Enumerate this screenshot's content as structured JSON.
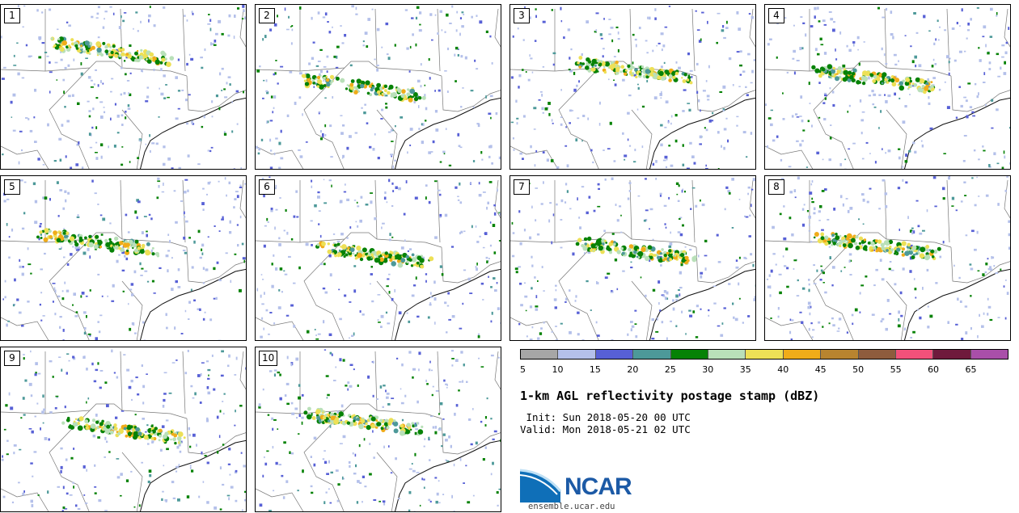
{
  "panels": [
    {
      "label": "1",
      "seed": 11,
      "band": [
        0.45,
        0.28
      ]
    },
    {
      "label": "2",
      "seed": 23,
      "band": [
        0.43,
        0.5
      ]
    },
    {
      "label": "3",
      "seed": 37,
      "band": [
        0.5,
        0.4
      ]
    },
    {
      "label": "4",
      "seed": 41,
      "band": [
        0.45,
        0.45
      ]
    },
    {
      "label": "5",
      "seed": 53,
      "band": [
        0.4,
        0.4
      ]
    },
    {
      "label": "6",
      "seed": 67,
      "band": [
        0.48,
        0.48
      ]
    },
    {
      "label": "7",
      "seed": 71,
      "band": [
        0.5,
        0.45
      ]
    },
    {
      "label": "8",
      "seed": 89,
      "band": [
        0.45,
        0.42
      ]
    },
    {
      "label": "9",
      "seed": 97,
      "band": [
        0.5,
        0.5
      ]
    },
    {
      "label": "10",
      "seed": 103,
      "band": [
        0.45,
        0.45
      ]
    }
  ],
  "colorbar": {
    "colors": [
      "#a6a6a6",
      "#b4c0ea",
      "#5760d6",
      "#4d9999",
      "#068206",
      "#b9e0b9",
      "#ede056",
      "#f0ac19",
      "#b8842f",
      "#8e5c3d",
      "#f2517a",
      "#6f1a3c",
      "#a94fa9"
    ],
    "ticks": [
      "5",
      "10",
      "15",
      "20",
      "25",
      "30",
      "35",
      "40",
      "45",
      "50",
      "55",
      "60",
      "65"
    ]
  },
  "title": "1-km AGL reflectivity postage stamp (dBZ)",
  "init": " Init: Sun 2018-05-20 00 UTC",
  "valid": "Valid: Mon 2018-05-21 02 UTC",
  "logo_text": "NCAR",
  "url": "ensemble.ucar.edu"
}
